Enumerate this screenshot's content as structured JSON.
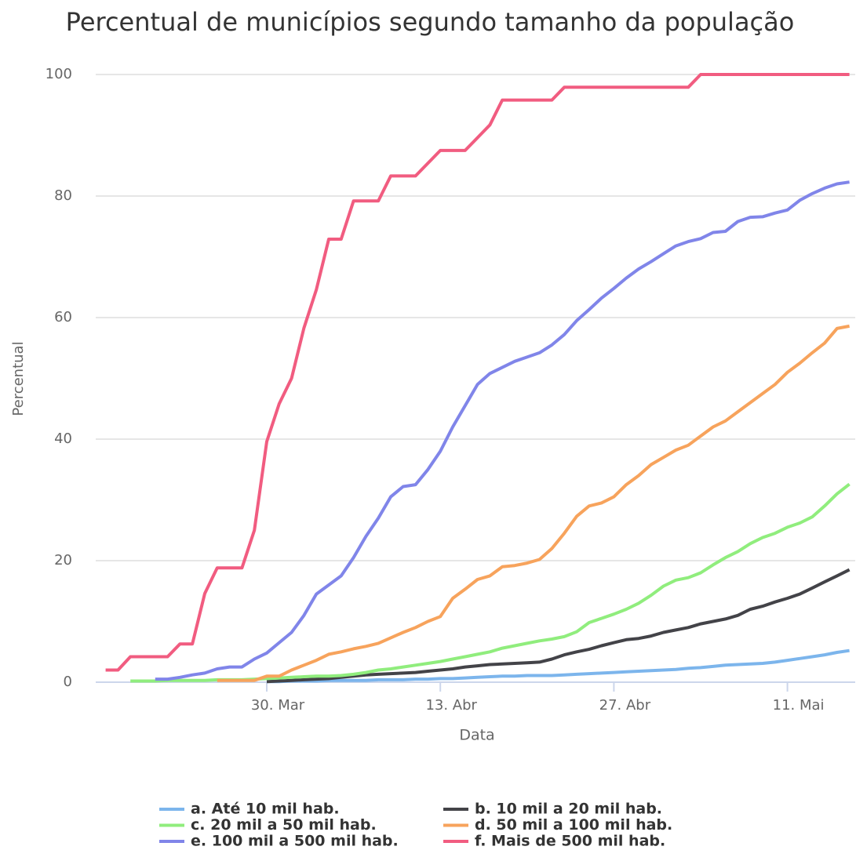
{
  "chart_data": {
    "type": "line",
    "title": "Percentual de municípios segundo tamanho da população",
    "x_label": "Data",
    "y_label": "Percentual",
    "categories": [
      null,
      null,
      null,
      null,
      null,
      null,
      null,
      null,
      null,
      null,
      null,
      null,
      null,
      "30. Mar",
      null,
      null,
      null,
      null,
      null,
      null,
      null,
      null,
      null,
      null,
      null,
      null,
      null,
      "13. Abr",
      null,
      null,
      null,
      null,
      null,
      null,
      null,
      null,
      null,
      null,
      null,
      null,
      null,
      "27. Abr",
      null,
      null,
      null,
      null,
      null,
      null,
      null,
      null,
      null,
      null,
      null,
      null,
      null,
      "11. Mai",
      null,
      null,
      null,
      null,
      null
    ],
    "ylim": [
      0,
      100
    ],
    "yticks": [
      0,
      20,
      40,
      60,
      80,
      100
    ],
    "grid": true,
    "legend": "bottom",
    "series": [
      {
        "name": "a. Até 10 mil hab.",
        "color": "#7cb5ec",
        "values": [
          null,
          null,
          null,
          null,
          null,
          null,
          null,
          null,
          null,
          null,
          null,
          null,
          null,
          0.1,
          0.1,
          0.2,
          0.2,
          0.2,
          0.3,
          0.3,
          0.3,
          0.3,
          0.4,
          0.4,
          0.4,
          0.5,
          0.5,
          0.6,
          0.6,
          0.7,
          0.8,
          0.9,
          1,
          1,
          1.1,
          1.1,
          1.1,
          1.2,
          1.3,
          1.4,
          1.5,
          1.6,
          1.7,
          1.8,
          1.9,
          2,
          2.1,
          2.3,
          2.4,
          2.6,
          2.8,
          2.9,
          3,
          3.1,
          3.3,
          3.6,
          3.9,
          4.2,
          4.5,
          4.9,
          5.2
        ]
      },
      {
        "name": "b. 10 mil a 20 mil hab.",
        "color": "#434348",
        "values": [
          null,
          null,
          null,
          null,
          null,
          null,
          null,
          null,
          null,
          null,
          null,
          null,
          null,
          0.1,
          0.2,
          0.3,
          0.4,
          0.5,
          0.6,
          0.8,
          1,
          1.2,
          1.3,
          1.4,
          1.5,
          1.6,
          1.8,
          2,
          2.2,
          2.5,
          2.7,
          2.9,
          3,
          3.1,
          3.2,
          3.3,
          3.8,
          4.5,
          5,
          5.4,
          6,
          6.5,
          7,
          7.2,
          7.6,
          8.2,
          8.6,
          9,
          9.6,
          10,
          10.4,
          11,
          12,
          12.5,
          13.2,
          13.8,
          14.5,
          15.5,
          16.5,
          17.5,
          18.5
        ]
      },
      {
        "name": "c. 20 mil a 50 mil hab.",
        "color": "#90ed7d",
        "values": [
          null,
          null,
          0.2,
          0.2,
          0.2,
          0.3,
          0.3,
          0.3,
          0.3,
          0.4,
          0.4,
          0.4,
          0.5,
          0.6,
          0.7,
          0.8,
          0.9,
          1,
          1,
          1.1,
          1.3,
          1.6,
          2,
          2.2,
          2.5,
          2.8,
          3.1,
          3.4,
          3.8,
          4.2,
          4.6,
          5,
          5.6,
          6,
          6.4,
          6.8,
          7.1,
          7.5,
          8.3,
          9.8,
          10.5,
          11.2,
          12,
          13,
          14.3,
          15.8,
          16.8,
          17.2,
          18,
          19.3,
          20.5,
          21.5,
          22.8,
          23.8,
          24.5,
          25.5,
          26.2,
          27.2,
          29,
          31,
          32.6
        ]
      },
      {
        "name": "d. 50 mil a 100 mil hab.",
        "color": "#f7a35c",
        "values": [
          null,
          null,
          null,
          null,
          null,
          null,
          null,
          null,
          null,
          0.3,
          0.3,
          0.3,
          0.3,
          1,
          1,
          2,
          2.8,
          3.6,
          4.6,
          5,
          5.5,
          5.9,
          6.4,
          7.3,
          8.2,
          9,
          10,
          10.8,
          13.8,
          15.3,
          16.9,
          17.5,
          19,
          19.2,
          19.6,
          20.2,
          22,
          24.5,
          27.3,
          29,
          29.5,
          30.5,
          32.5,
          34,
          35.8,
          37,
          38.2,
          39,
          40.5,
          42,
          43,
          44.5,
          46,
          47.5,
          49,
          51,
          52.5,
          54.2,
          55.8,
          58.2,
          58.6
        ]
      },
      {
        "name": "e. 100 mil a 500 mil hab.",
        "color": "#8085e9",
        "values": [
          null,
          null,
          null,
          null,
          0.5,
          0.5,
          0.8,
          1.2,
          1.5,
          2.2,
          2.5,
          2.5,
          3.8,
          4.8,
          6.5,
          8.2,
          11,
          14.5,
          16,
          17.5,
          20.5,
          24,
          27,
          30.5,
          32.2,
          32.5,
          35,
          38,
          42,
          45.5,
          49,
          50.8,
          51.8,
          52.8,
          53.5,
          54.2,
          55.5,
          57.2,
          59.5,
          61.3,
          63.2,
          64.8,
          66.5,
          68,
          69.2,
          70.5,
          71.8,
          72.5,
          73,
          74,
          74.2,
          75.8,
          76.5,
          76.6,
          77.2,
          77.7,
          79.3,
          80.4,
          81.3,
          82,
          82.3
        ]
      },
      {
        "name": "f. Mais de 500 mil hab.",
        "color": "#f15c80",
        "values": [
          2,
          2,
          4.2,
          4.2,
          4.2,
          4.2,
          6.3,
          6.3,
          14.6,
          18.8,
          18.8,
          18.8,
          25,
          39.6,
          45.8,
          50,
          58.3,
          64.6,
          72.9,
          72.9,
          79.2,
          79.2,
          79.2,
          83.3,
          83.3,
          83.3,
          85.4,
          87.5,
          87.5,
          87.5,
          89.6,
          91.7,
          95.8,
          95.8,
          95.8,
          95.8,
          95.8,
          97.9,
          97.9,
          97.9,
          97.9,
          97.9,
          97.9,
          97.9,
          97.9,
          97.9,
          97.9,
          97.9,
          100,
          100,
          100,
          100,
          100,
          100,
          100,
          100,
          100,
          100,
          100,
          100,
          100
        ]
      }
    ]
  }
}
